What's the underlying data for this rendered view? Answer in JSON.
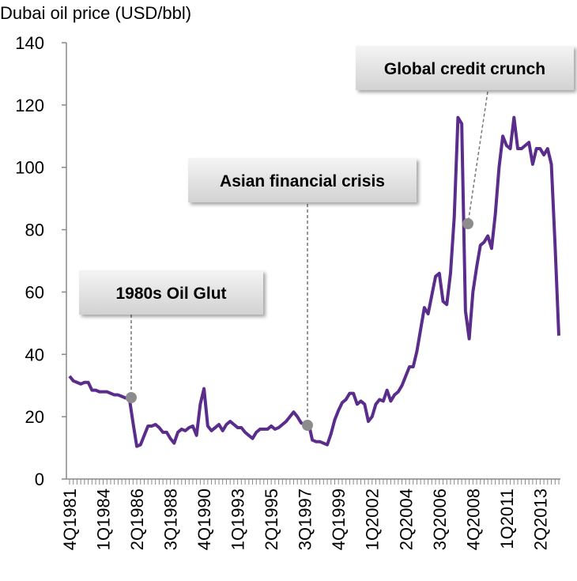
{
  "chart_data": {
    "type": "line",
    "title": "Dubai oil price (USD/bbl)",
    "categories": [
      "4Q1981",
      null,
      null,
      null,
      null,
      null,
      null,
      null,
      null,
      "1Q1984",
      null,
      null,
      null,
      null,
      null,
      null,
      null,
      null,
      "2Q1986",
      null,
      null,
      null,
      null,
      null,
      null,
      null,
      null,
      "3Q1988",
      null,
      null,
      null,
      null,
      null,
      null,
      null,
      null,
      "4Q1990",
      null,
      null,
      null,
      null,
      null,
      null,
      null,
      null,
      "1Q1993",
      null,
      null,
      null,
      null,
      null,
      null,
      null,
      null,
      "2Q1995",
      null,
      null,
      null,
      null,
      null,
      null,
      null,
      null,
      "3Q1997",
      null,
      null,
      null,
      null,
      null,
      null,
      null,
      null,
      "4Q1999",
      null,
      null,
      null,
      null,
      null,
      null,
      null,
      null,
      "1Q2002",
      null,
      null,
      null,
      null,
      null,
      null,
      null,
      null,
      "2Q2004",
      null,
      null,
      null,
      null,
      null,
      null,
      null,
      null,
      "3Q2006",
      null,
      null,
      null,
      null,
      null,
      null,
      null,
      null,
      "4Q2008",
      null,
      null,
      null,
      null,
      null,
      null,
      null,
      null,
      "1Q2011",
      null,
      null,
      null,
      null,
      null,
      null,
      null,
      null,
      "2Q2013",
      null,
      null,
      null,
      null,
      null
    ],
    "series": [
      {
        "name": "Dubai oil price",
        "color": "#5a2d8c",
        "values": [
          33,
          31.5,
          31,
          30.5,
          31,
          31,
          28.5,
          28.5,
          28,
          28,
          28,
          27.5,
          27,
          27,
          26.5,
          26,
          26,
          18,
          10.5,
          11,
          14,
          17,
          17,
          17.5,
          16.5,
          15,
          15,
          13,
          11.5,
          15,
          16,
          15.5,
          16.5,
          17,
          14,
          24,
          29,
          17,
          15.5,
          16.5,
          17.5,
          15.5,
          17.5,
          18.5,
          17.5,
          16.5,
          16.5,
          15,
          14,
          13,
          15,
          16,
          16,
          16,
          17,
          16,
          16.5,
          17.5,
          18.5,
          20,
          21.5,
          20,
          18,
          17.5,
          18,
          12.5,
          12,
          12,
          11.5,
          11,
          14.5,
          19,
          22,
          24.5,
          25.5,
          27.5,
          27.5,
          24,
          25,
          24,
          18.5,
          20,
          24,
          25.5,
          25,
          28.5,
          25,
          27,
          28,
          30,
          33,
          36,
          36,
          41,
          48,
          55,
          53,
          59,
          65,
          66,
          57,
          56,
          66,
          84,
          116,
          114,
          54,
          45,
          60,
          68,
          75,
          76,
          78,
          74,
          85,
          100,
          110,
          107,
          106,
          116,
          106,
          106,
          107,
          108,
          101,
          106,
          106,
          104,
          106,
          101,
          75,
          46
        ]
      }
    ],
    "ylim": [
      0,
      140
    ],
    "yticks": [
      0,
      20,
      40,
      60,
      80,
      100,
      120,
      140
    ],
    "grid": false,
    "annotations": [
      "1980s Oil Glut",
      "Asian financial crisis",
      "Global credit crunch"
    ]
  }
}
